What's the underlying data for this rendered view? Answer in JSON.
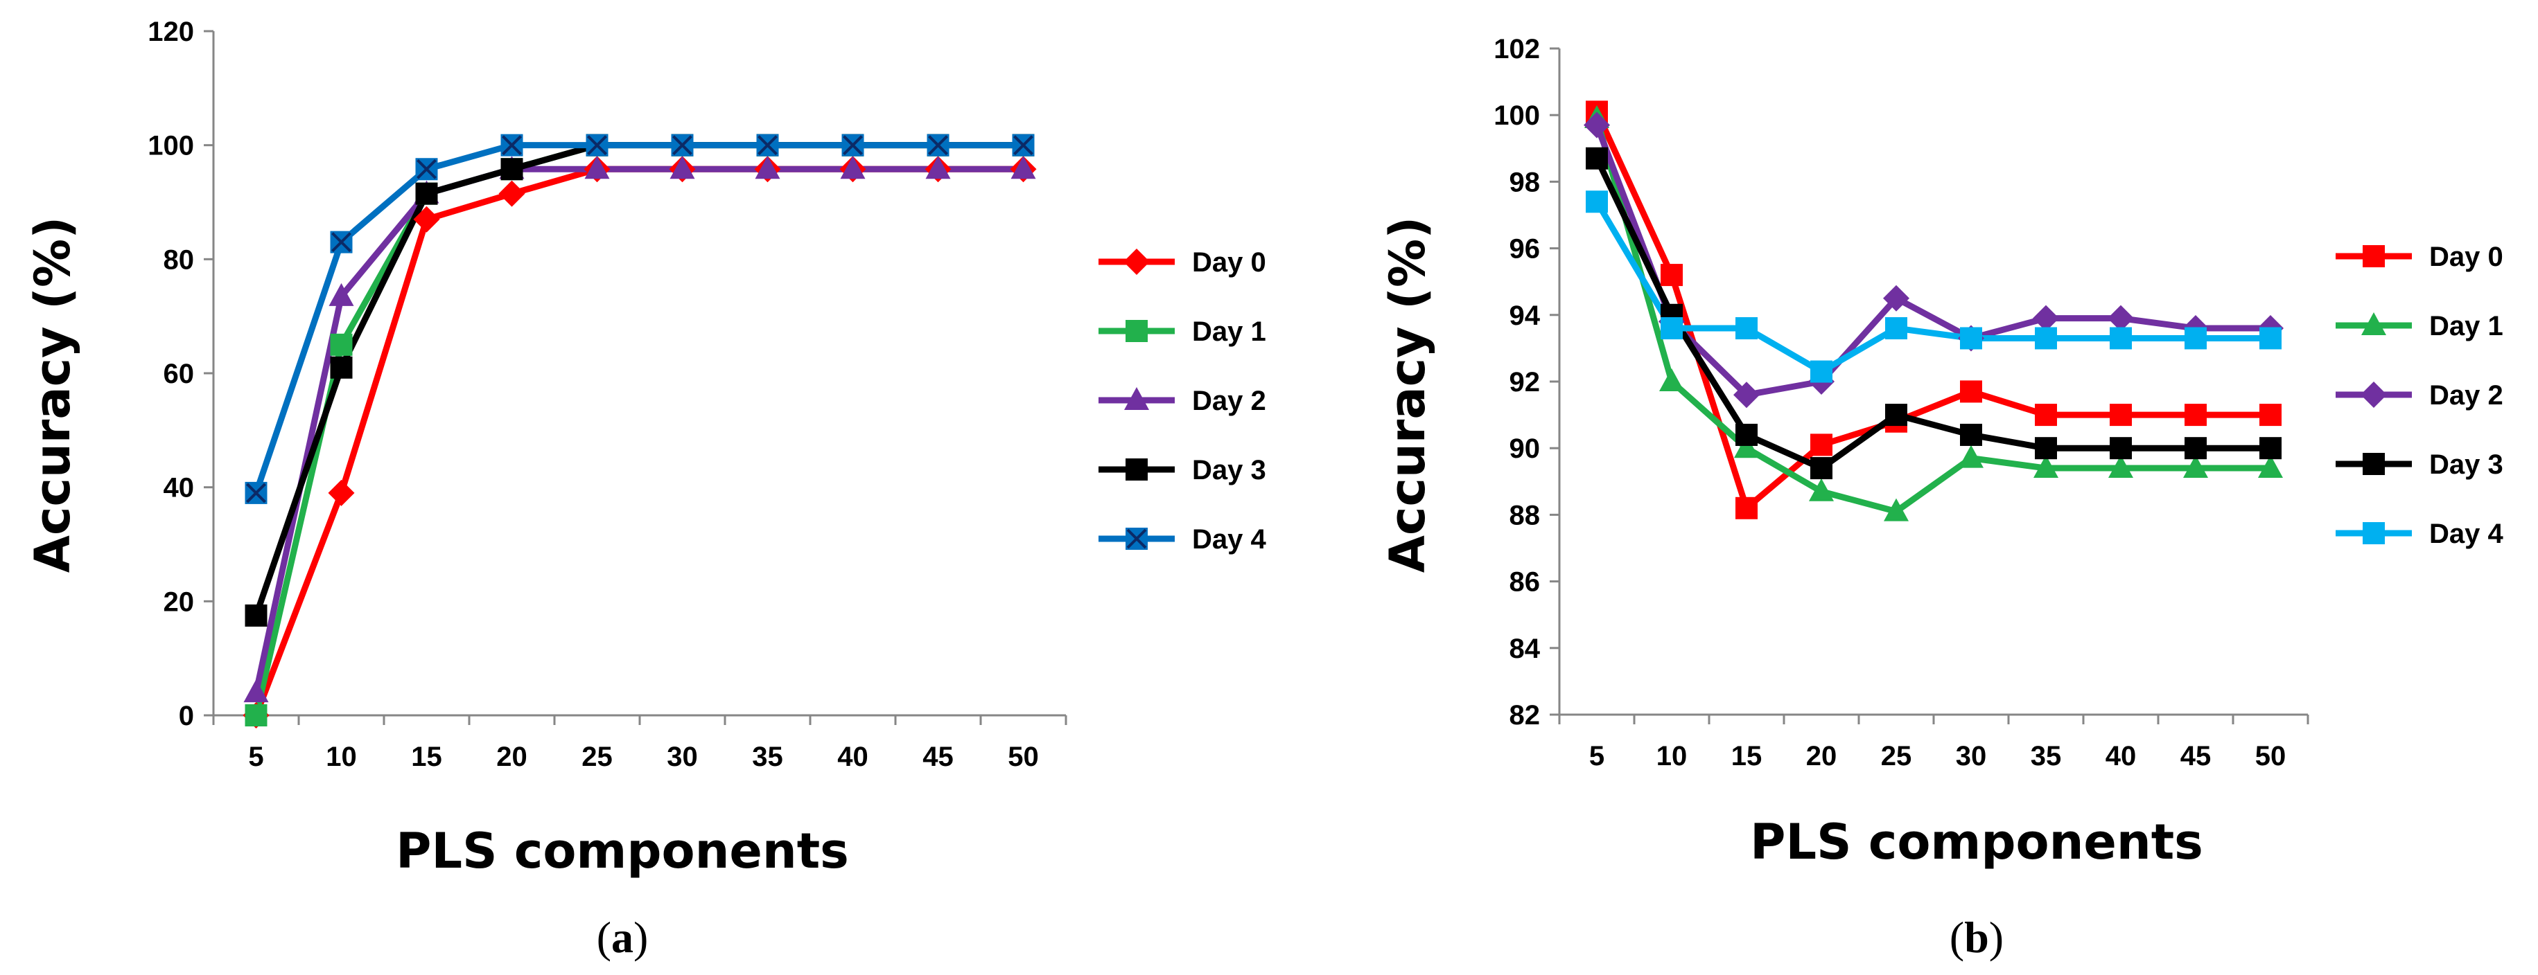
{
  "colors": {
    "Day 0": "#ff0000",
    "Day 1": "#22b14c",
    "Day 2": "#7030a0",
    "Day 3": "#000000",
    "Day 4a": "#0070c0",
    "Day 4b": "#00b0f0"
  },
  "chart_data": [
    {
      "panel": "a",
      "caption": "a",
      "type": "line",
      "xlabel": "PLS components",
      "ylabel": "Accuracy (%)",
      "categories": [
        "5",
        "10",
        "15",
        "20",
        "25",
        "30",
        "35",
        "40",
        "45",
        "50"
      ],
      "ylim": [
        0,
        120
      ],
      "yticks": [
        "0",
        "20",
        "40",
        "60",
        "80",
        "100",
        "120"
      ],
      "series": [
        {
          "name": "Day 0",
          "marker": "diamond",
          "color": "#ff0000",
          "values": [
            0,
            39,
            87,
            91.5,
            95.8,
            95.8,
            95.8,
            95.8,
            95.8,
            95.8
          ]
        },
        {
          "name": "Day 1",
          "marker": "square",
          "color": "#22b14c",
          "values": [
            0,
            65,
            91.5,
            95.8,
            100,
            100,
            100,
            100,
            100,
            100
          ]
        },
        {
          "name": "Day 2",
          "marker": "triangle",
          "color": "#7030a0",
          "values": [
            4,
            73.5,
            91.5,
            95.8,
            95.8,
            95.8,
            95.8,
            95.8,
            95.8,
            95.8
          ]
        },
        {
          "name": "Day 3",
          "marker": "square",
          "color": "#000000",
          "values": [
            17.5,
            61,
            91.5,
            95.8,
            100,
            100,
            100,
            100,
            100,
            100
          ]
        },
        {
          "name": "Day 4",
          "marker": "star",
          "color": "#0070c0",
          "values": [
            39,
            83,
            95.8,
            100,
            100,
            100,
            100,
            100,
            100,
            100
          ]
        }
      ]
    },
    {
      "panel": "b",
      "caption": "b",
      "type": "line",
      "xlabel": "PLS components",
      "ylabel": "Accuracy (%)",
      "categories": [
        "5",
        "10",
        "15",
        "20",
        "25",
        "30",
        "35",
        "40",
        "45",
        "50"
      ],
      "ylim": [
        82,
        102
      ],
      "yticks": [
        "82",
        "84",
        "86",
        "88",
        "90",
        "92",
        "94",
        "96",
        "98",
        "100",
        "102"
      ],
      "series": [
        {
          "name": "Day 0",
          "marker": "square",
          "color": "#ff0000",
          "values": [
            100.1,
            95.2,
            88.2,
            90.1,
            90.8,
            91.7,
            91,
            91,
            91,
            91
          ]
        },
        {
          "name": "Day 1",
          "marker": "triangle",
          "color": "#22b14c",
          "values": [
            99.9,
            92,
            90,
            88.7,
            88.1,
            89.7,
            89.4,
            89.4,
            89.4,
            89.4
          ]
        },
        {
          "name": "Day 2",
          "marker": "diamond",
          "color": "#7030a0",
          "values": [
            99.7,
            93.8,
            91.6,
            92,
            94.5,
            93.3,
            93.9,
            93.9,
            93.6,
            93.6
          ]
        },
        {
          "name": "Day 3",
          "marker": "square",
          "color": "#000000",
          "values": [
            98.7,
            94,
            90.4,
            89.4,
            91,
            90.4,
            90,
            90,
            90,
            90
          ]
        },
        {
          "name": "Day 4",
          "marker": "square",
          "color": "#00b0f0",
          "values": [
            97.4,
            93.6,
            93.6,
            92.3,
            93.6,
            93.3,
            93.3,
            93.3,
            93.3,
            93.3
          ]
        }
      ]
    }
  ]
}
